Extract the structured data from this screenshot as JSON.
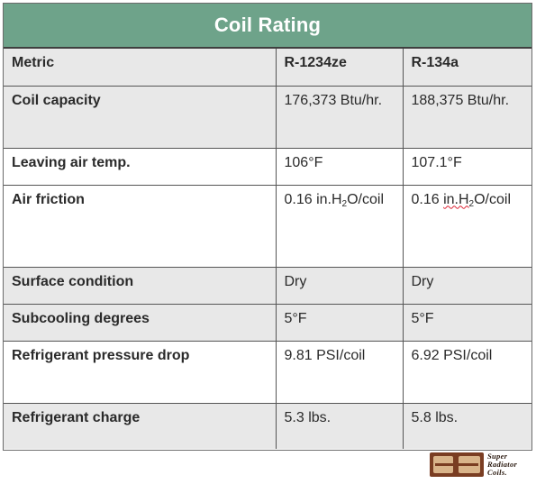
{
  "title": "Coil Rating",
  "header": {
    "metric": "Metric",
    "col_a": "R-1234ze",
    "col_b": "R-134a"
  },
  "rows": [
    {
      "metric": "Coil capacity",
      "a": "176,373 Btu/hr.",
      "b": "188,375 Btu/hr."
    },
    {
      "metric": "Leaving air temp.",
      "a": "106°F",
      "b": "107.1°F"
    },
    {
      "metric": "Air friction",
      "a_pre": "0.16 in.H",
      "a_sub": "2",
      "a_post": "O/coil",
      "b_pre": "0.16 ",
      "b_pre2": "in.H",
      "b_sub": "2",
      "b_post": "O/coil"
    },
    {
      "metric": "Surface condition",
      "a": "Dry",
      "b": "Dry"
    },
    {
      "metric": "Subcooling degrees",
      "a": "5°F",
      "b": "5°F"
    },
    {
      "metric": "Refrigerant pressure drop",
      "a": "9.81 PSI/coil",
      "b": "6.92 PSI/coil"
    },
    {
      "metric": "Refrigerant charge",
      "a": "5.3 lbs.",
      "b": "5.8 lbs."
    }
  ],
  "logo": {
    "line1": "Super",
    "line2": "Radiator",
    "line3": "Coils."
  },
  "colors": {
    "title_bg": "#6ea38a",
    "row_grey": "#e8e8e8",
    "logo_brown": "#7a3d22"
  }
}
